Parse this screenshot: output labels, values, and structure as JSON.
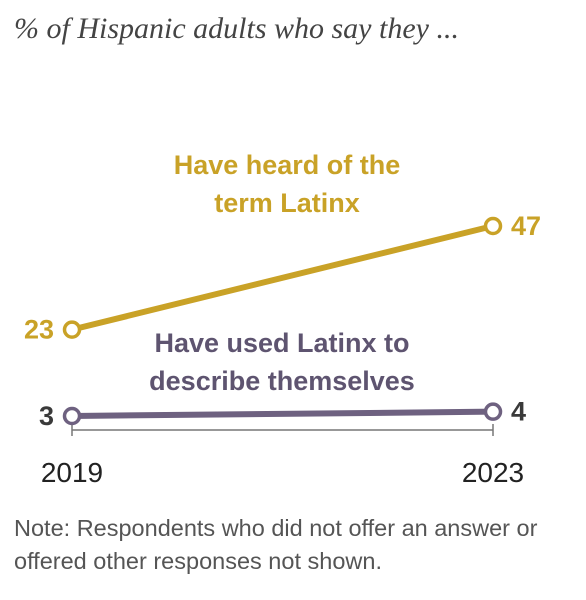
{
  "subtitle": "% of Hispanic adults who say they ...",
  "note": "Note: Respondents who did not offer an answer or offered other responses not shown.",
  "chart_data": {
    "type": "line",
    "x": [
      "2019",
      "2023"
    ],
    "ylim": [
      0,
      60
    ],
    "grid": false,
    "legend": "inline labels",
    "series": [
      {
        "name": "Have heard of the term Latinx",
        "label_lines": [
          "Have heard of the",
          "term Latinx"
        ],
        "values": [
          23,
          47
        ],
        "value_labels": [
          "23",
          "47"
        ],
        "color": "#c9a227"
      },
      {
        "name": "Have used Latinx to describe themselves",
        "label_lines": [
          "Have used Latinx to",
          "describe themselves"
        ],
        "values": [
          3,
          4
        ],
        "value_labels": [
          "3",
          "4"
        ],
        "color": "#6e6180"
      }
    ]
  }
}
